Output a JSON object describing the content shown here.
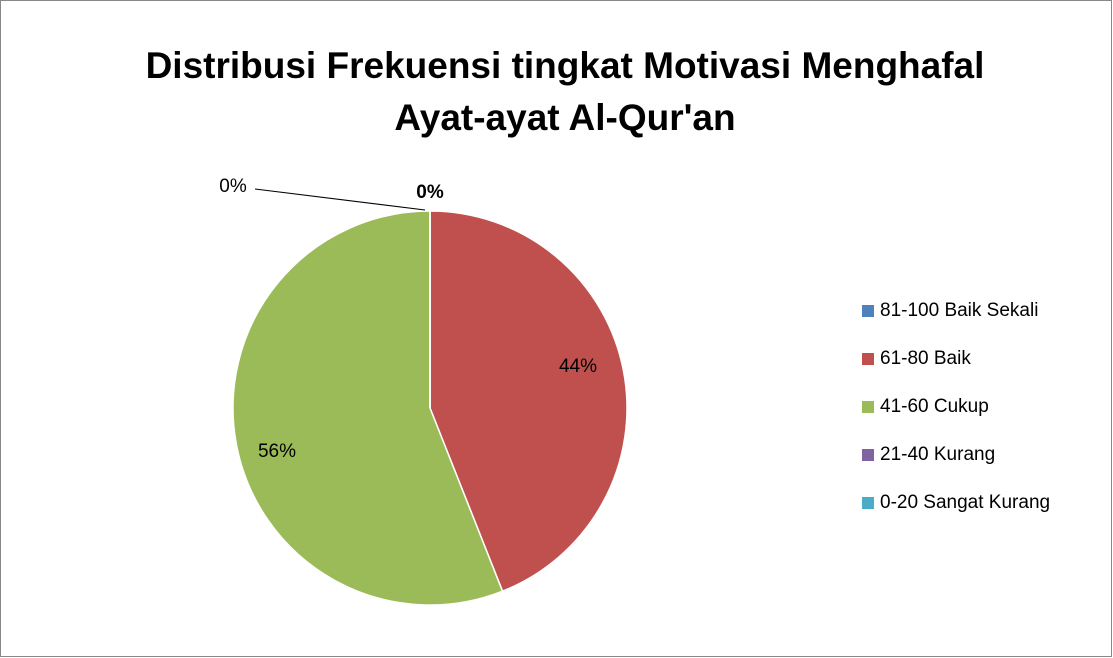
{
  "chart_data": {
    "type": "pie",
    "title": "Distribusi Frekuensi tingkat Motivasi Menghafal Ayat-ayat Al-Qur'an",
    "categories": [
      "81-100 Baik Sekali",
      "61-80 Baik",
      "41-60 Cukup",
      "21-40 Kurang",
      "0-20 Sangat Kurang"
    ],
    "values": [
      0,
      44,
      56,
      0,
      0
    ],
    "value_labels": [
      "0%",
      "44%",
      "56%",
      "0%",
      null
    ],
    "colors": [
      "#4f81bd",
      "#c0504d",
      "#9bbb59",
      "#8064a2",
      "#4bacc6"
    ],
    "legend": "right"
  }
}
